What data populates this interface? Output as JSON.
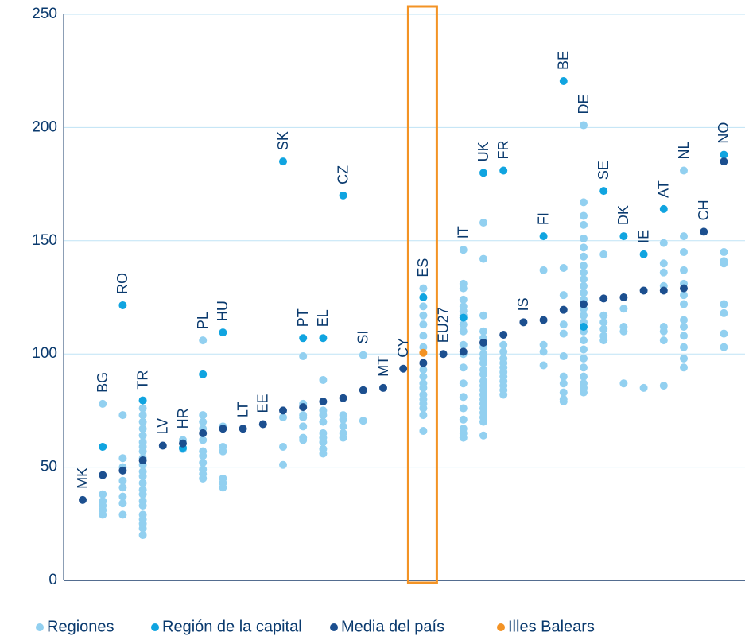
{
  "chart_data": {
    "type": "dot-strip",
    "categories": [
      "MK",
      "BG",
      "RO",
      "TR",
      "LV",
      "HR",
      "PL",
      "HU",
      "LT",
      "EE",
      "SK",
      "PT",
      "EL",
      "CZ",
      "SI",
      "MT",
      "CY",
      "ES",
      "EU27",
      "IT",
      "UK",
      "FR",
      "IS",
      "FI",
      "BE",
      "DE",
      "SE",
      "DK",
      "IE",
      "AT",
      "NL",
      "CH",
      "NO"
    ],
    "ylim": [
      0,
      250
    ],
    "yticks": [
      0,
      50,
      100,
      150,
      200,
      250
    ],
    "grid": true,
    "series": [
      {
        "name": "Regiones",
        "color": "#92d0f0",
        "values": [
          [],
          [
            78,
            38,
            35,
            33,
            31,
            29
          ],
          [
            73,
            54,
            50,
            44,
            41,
            37,
            34,
            29
          ],
          [
            76,
            73,
            70,
            67,
            64,
            61,
            59,
            57,
            54,
            51,
            48,
            46,
            43,
            40,
            38,
            35,
            33,
            29,
            27,
            25,
            23,
            20
          ],
          [],
          [
            62,
            58
          ],
          [
            106,
            73,
            70,
            67,
            62,
            57,
            55,
            52,
            49,
            47,
            45
          ],
          [
            68,
            59,
            57,
            45,
            43,
            41
          ],
          [],
          [],
          [
            72,
            59,
            51
          ],
          [
            99,
            78,
            73,
            72,
            68,
            63,
            62
          ],
          [
            88.5,
            75,
            73,
            70,
            65,
            63,
            61,
            58,
            56
          ],
          [
            73,
            71,
            68,
            65,
            63
          ],
          [
            99.5,
            70.5
          ],
          [],
          [],
          [
            129,
            121,
            117,
            113,
            108,
            103,
            93,
            90,
            87,
            85,
            82,
            80,
            78,
            76,
            73,
            66
          ],
          [],
          [
            146,
            131,
            129,
            124,
            121,
            119,
            117,
            113,
            110,
            104,
            100,
            94,
            87,
            81,
            76,
            71,
            67,
            65,
            63
          ],
          [
            158,
            142,
            117,
            110,
            107,
            103,
            100,
            98,
            96,
            93,
            91,
            88,
            86,
            84,
            82,
            80,
            78,
            76,
            74,
            72,
            70,
            64
          ],
          [
            104,
            101,
            98,
            96,
            94,
            92,
            90,
            88,
            86,
            84,
            82
          ],
          [],
          [
            137,
            104,
            101,
            95
          ],
          [
            138,
            126,
            113,
            109,
            99,
            90,
            87,
            83,
            80,
            79
          ],
          [
            201,
            167,
            161,
            157,
            151,
            147,
            143,
            139,
            136,
            133,
            130,
            127,
            124,
            120,
            117,
            114,
            110,
            106,
            102,
            98,
            94,
            90,
            87,
            85,
            83
          ],
          [
            144,
            117,
            114,
            111,
            108,
            106
          ],
          [
            120,
            112,
            110,
            87
          ],
          [
            85
          ],
          [
            149,
            140,
            136,
            130,
            112,
            110,
            106,
            86
          ],
          [
            181,
            152,
            145,
            137,
            131,
            126,
            122,
            115,
            112,
            108,
            103,
            98,
            94
          ],
          [],
          [
            145,
            141,
            140,
            122,
            118,
            109,
            103
          ]
        ]
      },
      {
        "name": "Región de la capital",
        "color": "#10a4e0",
        "values": [
          null,
          59,
          121.5,
          79.5,
          null,
          58.5,
          91,
          109.5,
          null,
          null,
          185,
          107,
          107,
          170,
          null,
          null,
          null,
          125,
          null,
          116,
          180,
          181,
          null,
          152,
          220.5,
          112,
          172,
          152,
          144,
          164,
          null,
          null,
          188
        ]
      },
      {
        "name": "Media del país",
        "color": "#1c4f8f",
        "values": [
          35.5,
          46.5,
          48.5,
          53,
          59.5,
          60.5,
          65,
          67,
          67,
          69,
          75,
          76.5,
          79,
          80.5,
          84,
          85,
          93.5,
          96,
          100,
          101,
          105,
          108.5,
          114,
          115,
          119.5,
          122,
          124.5,
          125,
          128,
          128,
          129,
          154,
          185
        ]
      },
      {
        "name": "Illes Balears",
        "color": "#f39325",
        "values": [
          null,
          null,
          null,
          null,
          null,
          null,
          null,
          null,
          null,
          null,
          null,
          null,
          null,
          null,
          null,
          null,
          null,
          100.5,
          null,
          null,
          null,
          null,
          null,
          null,
          null,
          null,
          null,
          null,
          null,
          null,
          null,
          null,
          null
        ]
      }
    ]
  }
}
